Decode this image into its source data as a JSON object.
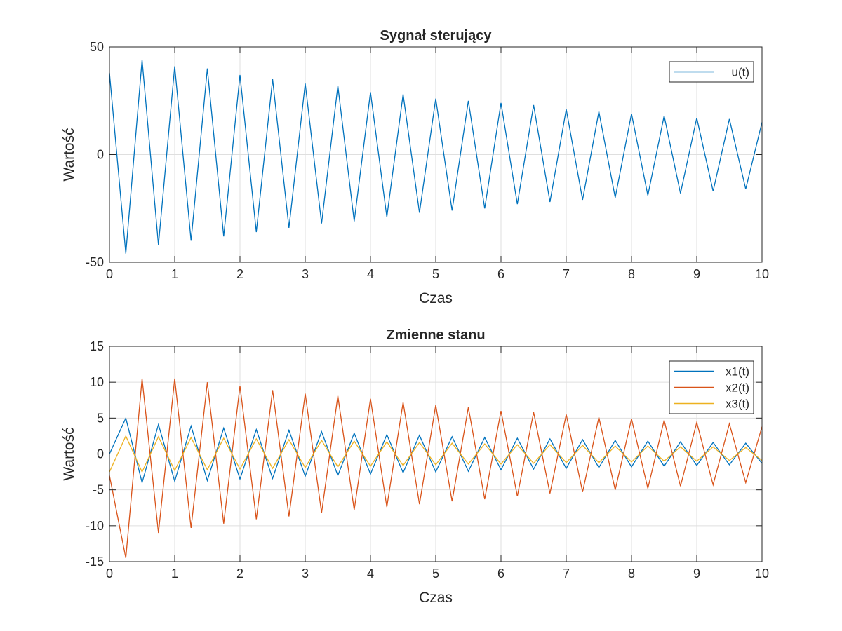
{
  "chart_data": [
    {
      "type": "line",
      "title": "Sygnał sterujący",
      "xlabel": "Czas",
      "ylabel": "Wartość",
      "xlim": [
        0,
        10
      ],
      "ylim": [
        -50,
        50
      ],
      "xticks": [
        0,
        1,
        2,
        3,
        4,
        5,
        6,
        7,
        8,
        9,
        10
      ],
      "yticks": [
        -50,
        0,
        50
      ],
      "xtick_labels": [
        "0",
        "1",
        "2",
        "3",
        "4",
        "5",
        "6",
        "7",
        "8",
        "9",
        "10"
      ],
      "ytick_labels": [
        "-50",
        "0",
        "50"
      ],
      "grid": true,
      "legend_position": "top-right",
      "series": [
        {
          "name": "u(t)",
          "color": "#0072BD",
          "x": [
            0,
            0.25,
            0.5,
            0.75,
            1.0,
            1.25,
            1.5,
            1.75,
            2.0,
            2.25,
            2.5,
            2.75,
            3.0,
            3.25,
            3.5,
            3.75,
            4.0,
            4.25,
            4.5,
            4.75,
            5.0,
            5.25,
            5.5,
            5.75,
            6.0,
            6.25,
            6.5,
            6.75,
            7.0,
            7.25,
            7.5,
            7.75,
            8.0,
            8.25,
            8.5,
            8.75,
            9.0,
            9.25,
            9.5,
            9.75,
            10.0
          ],
          "y": [
            38,
            -46,
            44,
            -42,
            41,
            -40,
            40,
            -38,
            37,
            -36,
            35,
            -34,
            33,
            -32,
            32,
            -31,
            29,
            -29,
            28,
            -27,
            26,
            -26,
            25,
            -25,
            24,
            -23,
            23,
            -22,
            21,
            -21,
            20,
            -20,
            19,
            -19,
            18,
            -18,
            17,
            -17,
            16.5,
            -16,
            15
          ]
        }
      ]
    },
    {
      "type": "line",
      "title": "Zmienne stanu",
      "xlabel": "Czas",
      "ylabel": "Wartość",
      "xlim": [
        0,
        10
      ],
      "ylim": [
        -15,
        15
      ],
      "xticks": [
        0,
        1,
        2,
        3,
        4,
        5,
        6,
        7,
        8,
        9,
        10
      ],
      "yticks": [
        -15,
        -10,
        -5,
        0,
        5,
        10,
        15
      ],
      "xtick_labels": [
        "0",
        "1",
        "2",
        "3",
        "4",
        "5",
        "6",
        "7",
        "8",
        "9",
        "10"
      ],
      "ytick_labels": [
        "-15",
        "-10",
        "-5",
        "0",
        "5",
        "10",
        "15"
      ],
      "grid": true,
      "legend_position": "top-right",
      "series": [
        {
          "name": "x1(t)",
          "color": "#0072BD",
          "x": [
            0,
            0.25,
            0.5,
            0.75,
            1.0,
            1.25,
            1.5,
            1.75,
            2.0,
            2.25,
            2.5,
            2.75,
            3.0,
            3.25,
            3.5,
            3.75,
            4.0,
            4.25,
            4.5,
            4.75,
            5.0,
            5.25,
            5.5,
            5.75,
            6.0,
            6.25,
            6.5,
            6.75,
            7.0,
            7.25,
            7.5,
            7.75,
            8.0,
            8.25,
            8.5,
            8.75,
            9.0,
            9.25,
            9.5,
            9.75,
            10.0
          ],
          "y": [
            0,
            5.0,
            -4.0,
            4.1,
            -3.8,
            3.9,
            -3.7,
            3.6,
            -3.5,
            3.4,
            -3.4,
            3.3,
            -3.1,
            3.1,
            -3.0,
            2.9,
            -2.8,
            2.7,
            -2.6,
            2.6,
            -2.5,
            2.4,
            -2.4,
            2.3,
            -2.2,
            2.2,
            -2.1,
            2.1,
            -2.0,
            2.0,
            -1.9,
            1.9,
            -1.8,
            1.8,
            -1.7,
            1.7,
            -1.6,
            1.6,
            -1.5,
            1.5,
            -1.3
          ]
        },
        {
          "name": "x2(t)",
          "color": "#D95319",
          "x": [
            0,
            0.25,
            0.5,
            0.75,
            1.0,
            1.25,
            1.5,
            1.75,
            2.0,
            2.25,
            2.5,
            2.75,
            3.0,
            3.25,
            3.5,
            3.75,
            4.0,
            4.25,
            4.5,
            4.75,
            5.0,
            5.25,
            5.5,
            5.75,
            6.0,
            6.25,
            6.5,
            6.75,
            7.0,
            7.25,
            7.5,
            7.75,
            8.0,
            8.25,
            8.5,
            8.75,
            9.0,
            9.25,
            9.5,
            9.75,
            10.0
          ],
          "y": [
            -3.0,
            -14.5,
            10.5,
            -11.0,
            10.5,
            -10.3,
            10.0,
            -9.7,
            9.5,
            -9.1,
            8.9,
            -8.7,
            8.4,
            -8.2,
            8.1,
            -7.8,
            7.7,
            -7.4,
            7.2,
            -7.0,
            6.8,
            -6.6,
            6.5,
            -6.3,
            6.0,
            -5.9,
            5.8,
            -5.5,
            5.5,
            -5.3,
            5.1,
            -5.0,
            4.9,
            -4.8,
            4.7,
            -4.5,
            4.4,
            -4.3,
            4.2,
            -4.0,
            3.8
          ]
        },
        {
          "name": "x3(t)",
          "color": "#EDB120",
          "x": [
            0,
            0.25,
            0.5,
            0.75,
            1.0,
            1.25,
            1.5,
            1.75,
            2.0,
            2.25,
            2.5,
            2.75,
            3.0,
            3.25,
            3.5,
            3.75,
            4.0,
            4.25,
            4.5,
            4.75,
            5.0,
            5.25,
            5.5,
            5.75,
            6.0,
            6.25,
            6.5,
            6.75,
            7.0,
            7.25,
            7.5,
            7.75,
            8.0,
            8.25,
            8.5,
            8.75,
            9.0,
            9.25,
            9.5,
            9.75,
            10.0
          ],
          "y": [
            -2.5,
            2.5,
            -2.5,
            2.4,
            -2.3,
            2.3,
            -2.2,
            2.2,
            -2.1,
            2.1,
            -2.0,
            2.0,
            -1.9,
            1.9,
            -1.8,
            1.8,
            -1.7,
            1.7,
            -1.6,
            1.6,
            -1.5,
            1.5,
            -1.4,
            1.4,
            -1.4,
            1.3,
            -1.3,
            1.3,
            -1.2,
            1.2,
            -1.2,
            1.1,
            -1.1,
            1.1,
            -1.0,
            1.0,
            -1.0,
            1.0,
            -0.9,
            0.9,
            -0.9
          ]
        }
      ]
    }
  ]
}
